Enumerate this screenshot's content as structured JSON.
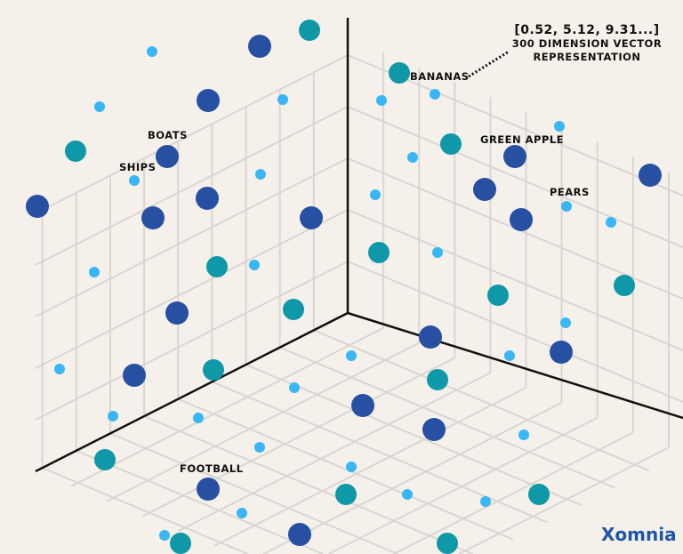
{
  "labels": {
    "bananas": "BANANAS",
    "boats": "BOATS",
    "ships": "SHIPS",
    "green_apple": "GREEN APPLE",
    "pears": "PEARS",
    "football": "FOOTBALL"
  },
  "vector_annotation": {
    "values": "[0.52, 5.12, 9.31...]",
    "caption_line1": "300 DIMENSION VECTOR",
    "caption_line2": "REPRESENTATION"
  },
  "logo": "Xomnia",
  "colors": {
    "background": "#f5f1ea",
    "grid": "#d9d6d1",
    "axis": "#111111",
    "dot_dark": "#2750a2",
    "dot_teal": "#0e98a8",
    "dot_light": "#38b6f5"
  }
}
